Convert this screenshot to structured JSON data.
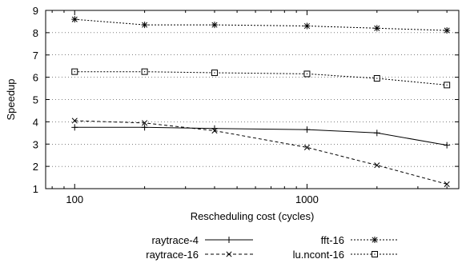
{
  "chart_data": {
    "type": "line",
    "x_scale": "log",
    "xlabel": "Rescheduling cost (cycles)",
    "ylabel": "Speedup",
    "xlim": [
      75,
      4500
    ],
    "ylim": [
      1,
      9
    ],
    "x_ticks": [
      100,
      1000
    ],
    "x_tick_labels": [
      "100",
      "1000"
    ],
    "y_ticks": [
      1,
      2,
      3,
      4,
      5,
      6,
      7,
      8,
      9
    ],
    "y_tick_labels": [
      "1",
      "2",
      "3",
      "4",
      "5",
      "6",
      "7",
      "8",
      "9"
    ],
    "grid": "horizontal dotted",
    "legend_position": "below",
    "x": [
      100,
      200,
      400,
      1000,
      2000,
      4000
    ],
    "series": [
      {
        "name": "raytrace-4",
        "marker": "plus",
        "line_style": "solid",
        "values": [
          3.75,
          3.75,
          3.7,
          3.65,
          3.5,
          2.95
        ]
      },
      {
        "name": "raytrace-16",
        "marker": "cross",
        "line_style": "dashed",
        "values": [
          4.05,
          3.95,
          3.6,
          2.85,
          2.05,
          1.2
        ]
      },
      {
        "name": "fft-16",
        "marker": "star",
        "line_style": "dotted",
        "values": [
          8.6,
          8.35,
          8.35,
          8.3,
          8.2,
          8.1
        ]
      },
      {
        "name": "lu.ncont-16",
        "marker": "square",
        "line_style": "dotted",
        "values": [
          6.25,
          6.25,
          6.2,
          6.15,
          5.95,
          5.65
        ]
      }
    ]
  }
}
